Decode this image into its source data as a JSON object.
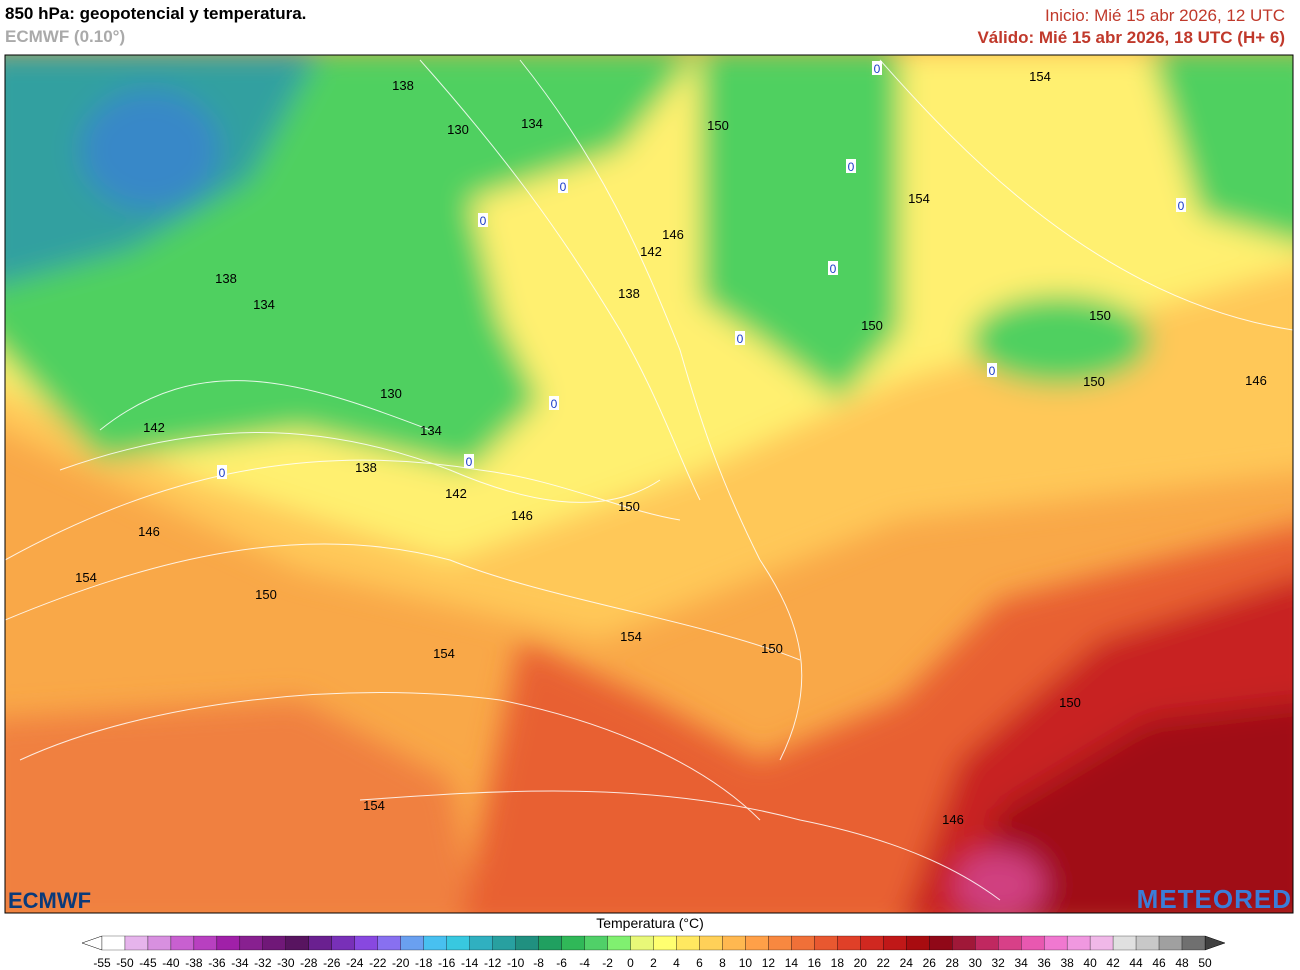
{
  "header": {
    "title": "850 hPa: geopotencial y temperatura.",
    "model": "ECMWF (0.10°)",
    "init": "Inicio: Mié 15 abr 2026, 12 UTC",
    "valid": "Válido: Mié 15 abr 2026, 18 UTC (H+ 6)"
  },
  "map": {
    "contour_labels": [
      138,
      130,
      134,
      150,
      154,
      138,
      134,
      142,
      146,
      138,
      154,
      150,
      150,
      150,
      146,
      130,
      134,
      142,
      138,
      142,
      146,
      150,
      146,
      154,
      150,
      154,
      154,
      150,
      150,
      154,
      146
    ],
    "freezing_labels": [
      0,
      0,
      0,
      0,
      0,
      0,
      0,
      0,
      0,
      0,
      0
    ]
  },
  "logos": {
    "left": "ECMWF",
    "right": "METEORED"
  },
  "legend": {
    "title": "Temperatura (°C)",
    "ticks": [
      -55,
      -50,
      -45,
      -40,
      -38,
      -36,
      -34,
      -32,
      -30,
      -28,
      -26,
      -24,
      -22,
      -20,
      -18,
      -16,
      -14,
      -12,
      -10,
      -8,
      -6,
      -4,
      -2,
      0,
      2,
      4,
      6,
      8,
      10,
      12,
      14,
      16,
      18,
      20,
      22,
      24,
      26,
      28,
      30,
      32,
      34,
      36,
      38,
      40,
      42,
      44,
      46,
      48,
      50
    ],
    "colors": [
      "#ffffff",
      "#e6b4ec",
      "#d890e0",
      "#c860d0",
      "#b840c0",
      "#a020a8",
      "#882090",
      "#701878",
      "#581460",
      "#6a2090",
      "#7830b8",
      "#8848e0",
      "#8870f0",
      "#6aa0f0",
      "#48c0f0",
      "#38c8e0",
      "#30b0c0",
      "#28a0a0",
      "#209080",
      "#20a060",
      "#30b858",
      "#50d068",
      "#80f070",
      "#e8f878",
      "#ffff70",
      "#ffe860",
      "#ffd058",
      "#ffb850",
      "#ffa048",
      "#f88840",
      "#f07038",
      "#e85830",
      "#e04028",
      "#d02820",
      "#c01818",
      "#a80c10",
      "#900818",
      "#a01838",
      "#c02860",
      "#d84088",
      "#e858b0",
      "#f078d0",
      "#f098e0",
      "#f0b8e8",
      "#e0e0e0",
      "#c8c8c8",
      "#a0a0a0",
      "#707070"
    ],
    "under_color": "#ffffff",
    "over_color": "#404040"
  }
}
